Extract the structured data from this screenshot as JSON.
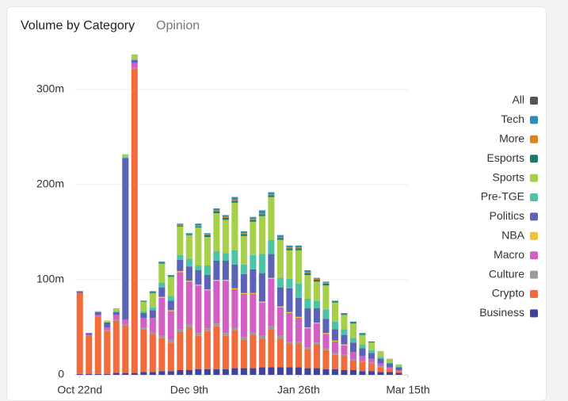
{
  "chart_data": {
    "type": "stacked_bar",
    "title": "Volume by Category",
    "subtitle": "Opinion",
    "x": [
      0,
      4,
      8,
      12,
      16,
      20,
      24,
      28,
      32,
      36,
      40,
      44,
      48,
      52,
      56,
      60,
      64,
      68,
      72,
      76,
      80,
      84,
      88,
      92,
      96,
      100,
      104,
      108,
      112,
      116,
      120,
      124,
      128,
      132,
      136,
      140
    ],
    "xlim": [
      -2,
      144
    ],
    "xticks": [
      {
        "value": 0,
        "label": "Oct 22nd"
      },
      {
        "value": 48,
        "label": "Dec 9th"
      },
      {
        "value": 96,
        "label": "Jan 26th"
      },
      {
        "value": 144,
        "label": "Mar 15th"
      }
    ],
    "ylim": [
      0,
      340
    ],
    "yticks": [
      0,
      {
        "value": 100,
        "label": "100m"
      },
      {
        "value": 200,
        "label": "200m"
      },
      {
        "value": 300,
        "label": "300m"
      }
    ],
    "grid": true,
    "series": [
      {
        "name": "All",
        "color": "#555555",
        "values": [
          0,
          0,
          0,
          0,
          0,
          0,
          0,
          0,
          0,
          0,
          0,
          0,
          0,
          0,
          0,
          0,
          0,
          0,
          0,
          0,
          0,
          0,
          0,
          0,
          0,
          0,
          0,
          0,
          0,
          0,
          0,
          0,
          0,
          0,
          0,
          0
        ]
      },
      {
        "name": "Tech",
        "color": "#2b8cbe",
        "values": [
          0,
          0,
          0,
          0,
          0,
          0,
          0,
          0,
          1,
          1,
          1,
          1,
          1,
          2,
          1,
          2,
          2,
          3,
          2,
          2,
          3,
          2,
          2,
          2,
          2,
          2,
          1,
          1,
          1,
          1,
          1,
          1,
          0,
          0,
          0,
          0
        ]
      },
      {
        "name": "More",
        "color": "#e08214",
        "values": [
          0,
          0,
          0,
          0,
          0,
          0,
          0,
          0,
          0,
          0,
          0,
          1,
          0,
          1,
          1,
          1,
          1,
          1,
          1,
          1,
          1,
          1,
          1,
          1,
          1,
          1,
          1,
          1,
          0,
          0,
          0,
          0,
          0,
          0,
          0,
          0
        ]
      },
      {
        "name": "Esports",
        "color": "#1b7a6e",
        "values": [
          0,
          0,
          0,
          0,
          0,
          0,
          0,
          1,
          1,
          1,
          1,
          1,
          1,
          1,
          2,
          2,
          2,
          2,
          2,
          2,
          2,
          2,
          2,
          2,
          2,
          2,
          2,
          2,
          1,
          1,
          1,
          1,
          1,
          0,
          0,
          0
        ]
      },
      {
        "name": "Sports",
        "color": "#a6cf4a",
        "values": [
          0,
          0,
          1,
          2,
          3,
          3,
          5,
          10,
          15,
          20,
          20,
          30,
          25,
          40,
          30,
          40,
          35,
          50,
          30,
          35,
          40,
          45,
          40,
          30,
          35,
          25,
          20,
          25,
          20,
          15,
          15,
          10,
          8,
          6,
          4,
          2
        ]
      },
      {
        "name": "Pre-TGE",
        "color": "#4cc3a5",
        "values": [
          0,
          0,
          0,
          0,
          1,
          1,
          1,
          2,
          3,
          5,
          5,
          5,
          8,
          5,
          10,
          10,
          8,
          15,
          10,
          15,
          20,
          15,
          10,
          10,
          15,
          10,
          8,
          10,
          8,
          6,
          5,
          4,
          3,
          2,
          1,
          1
        ]
      },
      {
        "name": "Politics",
        "color": "#5b63b8",
        "values": [
          2,
          2,
          3,
          5,
          3,
          170,
          3,
          5,
          8,
          10,
          10,
          12,
          15,
          15,
          15,
          20,
          20,
          25,
          20,
          25,
          30,
          25,
          20,
          25,
          20,
          20,
          15,
          15,
          12,
          10,
          10,
          8,
          6,
          5,
          4,
          3
        ]
      },
      {
        "name": "NBA",
        "color": "#f2c12e",
        "values": [
          0,
          0,
          0,
          0,
          0,
          0,
          0,
          0,
          0,
          1,
          1,
          1,
          1,
          1,
          1,
          1,
          1,
          1,
          1,
          1,
          1,
          1,
          1,
          1,
          1,
          1,
          1,
          1,
          1,
          1,
          0,
          0,
          0,
          0,
          0,
          0
        ]
      },
      {
        "name": "Macro",
        "color": "#d45fc4",
        "values": [
          0,
          1,
          2,
          3,
          5,
          5,
          5,
          10,
          15,
          40,
          30,
          60,
          45,
          50,
          40,
          45,
          55,
          40,
          45,
          40,
          35,
          50,
          30,
          30,
          25,
          20,
          20,
          15,
          12,
          10,
          8,
          5,
          4,
          3,
          2,
          1
        ]
      },
      {
        "name": "Culture",
        "color": "#9a9a9a",
        "values": [
          0,
          0,
          0,
          1,
          1,
          1,
          1,
          2,
          2,
          2,
          3,
          3,
          3,
          3,
          3,
          3,
          3,
          3,
          3,
          3,
          3,
          3,
          3,
          2,
          2,
          2,
          2,
          2,
          2,
          1,
          1,
          1,
          1,
          1,
          0,
          0
        ]
      },
      {
        "name": "Crypto",
        "color": "#f26b3a",
        "values": [
          85,
          40,
          60,
          45,
          55,
          50,
          320,
          45,
          40,
          35,
          30,
          40,
          45,
          35,
          40,
          45,
          35,
          40,
          30,
          35,
          30,
          40,
          30,
          25,
          25,
          20,
          25,
          20,
          15,
          15,
          10,
          10,
          8,
          5,
          3,
          2
        ]
      },
      {
        "name": "Business",
        "color": "#3f4399",
        "values": [
          1,
          1,
          1,
          1,
          2,
          2,
          2,
          3,
          3,
          4,
          4,
          5,
          5,
          6,
          6,
          6,
          6,
          7,
          7,
          7,
          8,
          8,
          8,
          8,
          8,
          7,
          7,
          6,
          6,
          5,
          5,
          4,
          4,
          3,
          3,
          2
        ]
      }
    ]
  }
}
